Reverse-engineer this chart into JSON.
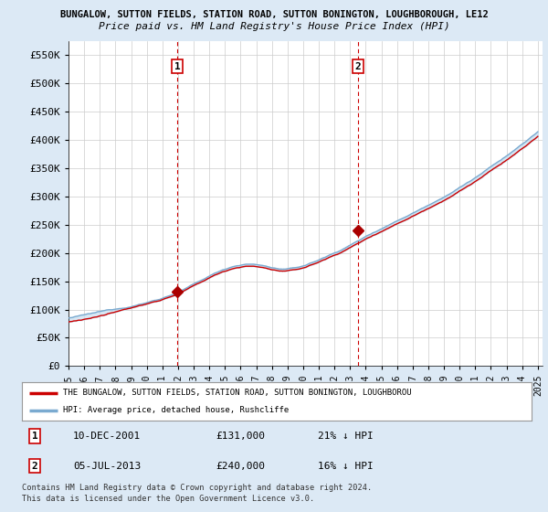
{
  "title_line1": "BUNGALOW, SUTTON FIELDS, STATION ROAD, SUTTON BONINGTON, LOUGHBOROUGH, LE12",
  "title_line2": "Price paid vs. HM Land Registry's House Price Index (HPI)",
  "background_color": "#dce9f5",
  "plot_bg_color": "#ffffff",
  "ylim": [
    0,
    575000
  ],
  "yticks": [
    0,
    50000,
    100000,
    150000,
    200000,
    250000,
    300000,
    350000,
    400000,
    450000,
    500000,
    550000
  ],
  "ytick_labels": [
    "£0",
    "£50K",
    "£100K",
    "£150K",
    "£200K",
    "£250K",
    "£300K",
    "£350K",
    "£400K",
    "£450K",
    "£500K",
    "£550K"
  ],
  "sale1_year": 2001.96,
  "sale1_price": 131000,
  "sale2_year": 2013.5,
  "sale2_price": 240000,
  "legend_property": "THE BUNGALOW, SUTTON FIELDS, STATION ROAD, SUTTON BONINGTON, LOUGHBOROU",
  "legend_hpi": "HPI: Average price, detached house, Rushcliffe",
  "footnote1": "Contains HM Land Registry data © Crown copyright and database right 2024.",
  "footnote2": "This data is licensed under the Open Government Licence v3.0.",
  "table_row1": [
    "1",
    "10-DEC-2001",
    "£131,000",
    "21% ↓ HPI"
  ],
  "table_row2": [
    "2",
    "05-JUL-2013",
    "£240,000",
    "16% ↓ HPI"
  ],
  "property_line_color": "#cc0000",
  "hpi_line_color": "#7aaad0",
  "fill_color": "#c8dff0",
  "sale_marker_color": "#aa0000",
  "vline_color": "#cc0000",
  "box_edge_color": "#cc0000"
}
